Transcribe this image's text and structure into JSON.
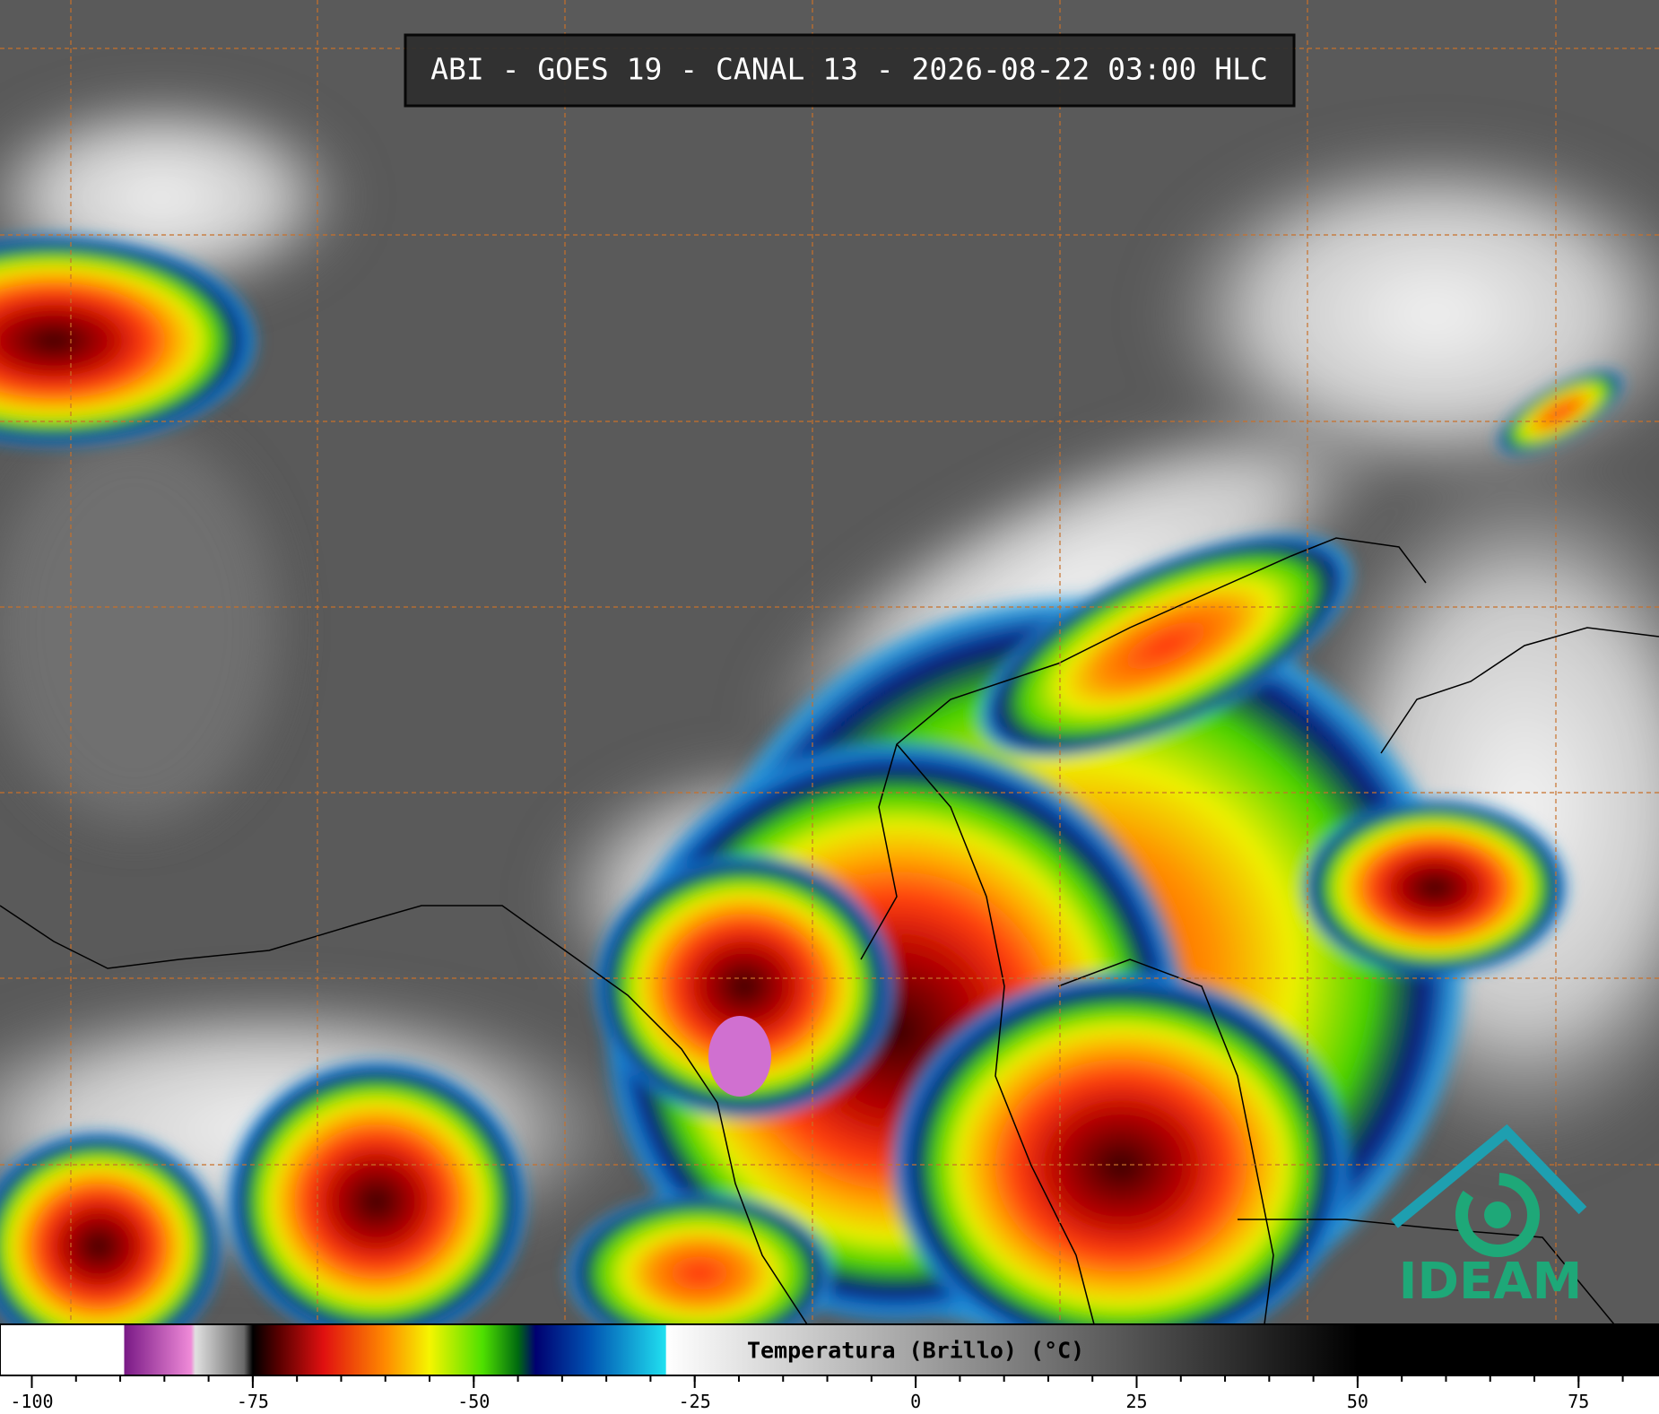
{
  "header": {
    "title": "ABI - GOES 19 - CANAL 13 - 2026-08-22 03:00 HLC"
  },
  "logo": {
    "text": "IDEAM"
  },
  "colorbar": {
    "label": "Temperatura (Brillo) (°C)",
    "xlim": [
      -103.6,
      84.1
    ],
    "xticks": [
      -100,
      -75,
      -50,
      -25,
      0,
      25,
      50,
      75
    ],
    "minor_tick_step": 5,
    "stops": [
      {
        "value": -103.6,
        "color": "#ffffff"
      },
      {
        "value": -89.6,
        "color": "#ffffff"
      },
      {
        "value": -89.5,
        "color": "#7a1a86"
      },
      {
        "value": -82,
        "color": "#ef8ad8"
      },
      {
        "value": -81.5,
        "color": "#e0e0e0"
      },
      {
        "value": -76,
        "color": "#6a6a6a"
      },
      {
        "value": -75,
        "color": "#000000"
      },
      {
        "value": -72,
        "color": "#5a0000"
      },
      {
        "value": -67,
        "color": "#e01010"
      },
      {
        "value": -60,
        "color": "#ff8a00"
      },
      {
        "value": -55,
        "color": "#f5f500"
      },
      {
        "value": -49,
        "color": "#4ee000"
      },
      {
        "value": -45,
        "color": "#006a10"
      },
      {
        "value": -43,
        "color": "#000070"
      },
      {
        "value": -37,
        "color": "#0050b0"
      },
      {
        "value": -28.3,
        "color": "#20e0f0"
      },
      {
        "value": -28.2,
        "color": "#ffffff"
      },
      {
        "value": 50,
        "color": "#000000"
      },
      {
        "value": 84.1,
        "color": "#000000"
      }
    ]
  }
}
